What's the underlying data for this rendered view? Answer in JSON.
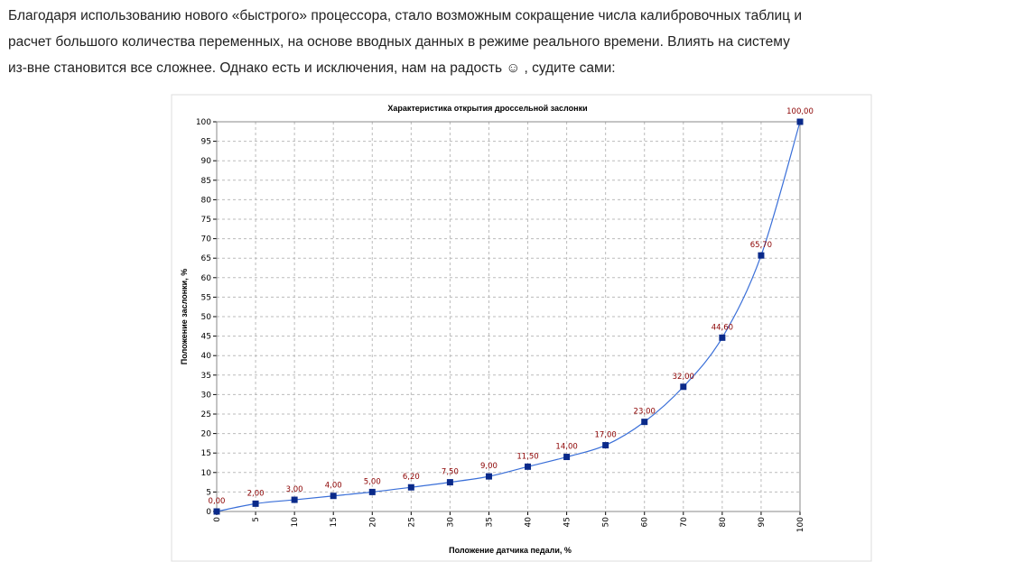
{
  "paragraph": [
    "Благодаря использованию нового «быстрого» процессора, стало возможным сокращение числа калибровочных таблиц и",
    "расчет большого количества переменных, на основе вводных данных в режиме реального времени. Влиять на систему",
    "из-вне становится все сложнее.  Однако есть и исключения, нам на радость ☺ , судите сами:"
  ],
  "chart_data": {
    "type": "line",
    "title": "Характеристика открытия дроссельной заслонки",
    "x_label": "Положение датчика педали, %",
    "y_label": "Положение заслонки, %",
    "categories": [
      "0",
      "5",
      "10",
      "15",
      "20",
      "25",
      "30",
      "35",
      "40",
      "45",
      "50",
      "60",
      "70",
      "80",
      "90",
      "100"
    ],
    "series": [
      {
        "name": "Положение заслонки",
        "color": "#3a6fd8",
        "marker_color": "#0a2a8a",
        "values": [
          0,
          2,
          3,
          4,
          5,
          6.2,
          7.5,
          9,
          11.5,
          14,
          17,
          23,
          32,
          44.6,
          65.7,
          100
        ],
        "value_labels": [
          "0,00",
          "2,00",
          "3,00",
          "4,00",
          "5,00",
          "6,20",
          "7,50",
          "9,00",
          "11,50",
          "14,00",
          "17,00",
          "23,00",
          "32,00",
          "44,60",
          "65,70",
          "100,00"
        ]
      }
    ],
    "ylim": [
      0,
      100
    ],
    "yticks": [
      0,
      5,
      10,
      15,
      20,
      25,
      30,
      35,
      40,
      45,
      50,
      55,
      60,
      65,
      70,
      75,
      80,
      85,
      90,
      95,
      100
    ],
    "grid": true
  }
}
